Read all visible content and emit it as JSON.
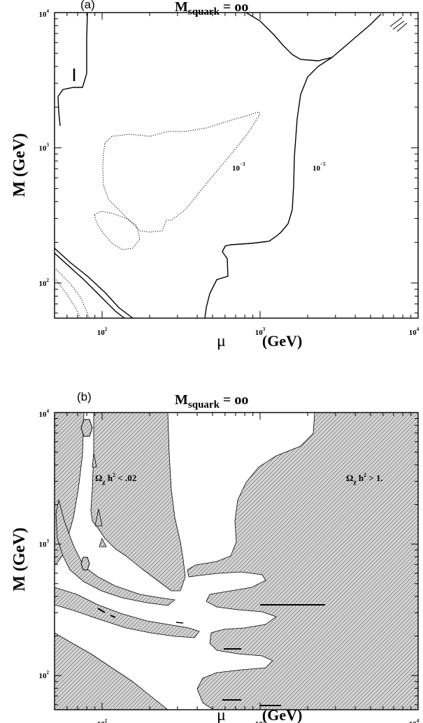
{
  "chart_data": [
    {
      "type": "contour",
      "panel_label": "(a)",
      "title": {
        "main": "M",
        "sub": "squark",
        "rest": " = oo"
      },
      "ylabel": "M  (GeV)",
      "xlabel": {
        "symbol": "μ",
        "unit": "(GeV)"
      },
      "xscale": "log",
      "yscale": "log",
      "xlim": [
        50,
        10000
      ],
      "ylim": [
        55,
        10000
      ],
      "xticks": [
        {
          "value": 100,
          "base": "10",
          "exp": "2"
        },
        {
          "value": 1000,
          "base": "10",
          "exp": "3"
        },
        {
          "value": 10000,
          "base": "10",
          "exp": "4"
        }
      ],
      "yticks": [
        {
          "value": 100,
          "base": "10",
          "exp": "2"
        },
        {
          "value": 1000,
          "base": "10",
          "exp": "3"
        },
        {
          "value": 10000,
          "base": "10",
          "exp": "4"
        }
      ],
      "contours": [
        {
          "label": {
            "base": "10",
            "exp": "−3"
          },
          "style": "dotted",
          "label_at": [
            700,
            950
          ]
        },
        {
          "label": {
            "base": "10",
            "exp": "−5"
          },
          "style": "solid",
          "label_at": [
            2200,
            950
          ]
        }
      ]
    },
    {
      "type": "region",
      "panel_label": "(b)",
      "title": {
        "main": "M",
        "sub": "squark",
        "rest": " = oo"
      },
      "ylabel": "M  (GeV)",
      "xlabel": {
        "symbol": "μ",
        "unit": "(GeV)"
      },
      "xscale": "log",
      "yscale": "log",
      "xlim": [
        50,
        10000
      ],
      "ylim": [
        55,
        10000
      ],
      "xticks": [
        {
          "value": 100,
          "base": "10",
          "exp": "2"
        },
        {
          "value": 1000,
          "base": "10",
          "exp": "3"
        },
        {
          "value": 10000,
          "base": "10",
          "exp": "4"
        }
      ],
      "yticks": [
        {
          "value": 100,
          "base": "10",
          "exp": "2"
        },
        {
          "value": 1000,
          "base": "10",
          "exp": "3"
        },
        {
          "value": 10000,
          "base": "10",
          "exp": "4"
        }
      ],
      "regions": [
        {
          "label": {
            "pre": "Ω",
            "sub": "χ",
            "mid": " h",
            "sup": "2",
            "post": " < .02"
          },
          "label_at": [
            140,
            3000
          ]
        },
        {
          "label": {
            "pre": "Ω",
            "sub": "χ",
            "mid": " h",
            "sup": "2",
            "post": " > 1."
          },
          "label_at": [
            3200,
            3000
          ]
        }
      ]
    }
  ]
}
